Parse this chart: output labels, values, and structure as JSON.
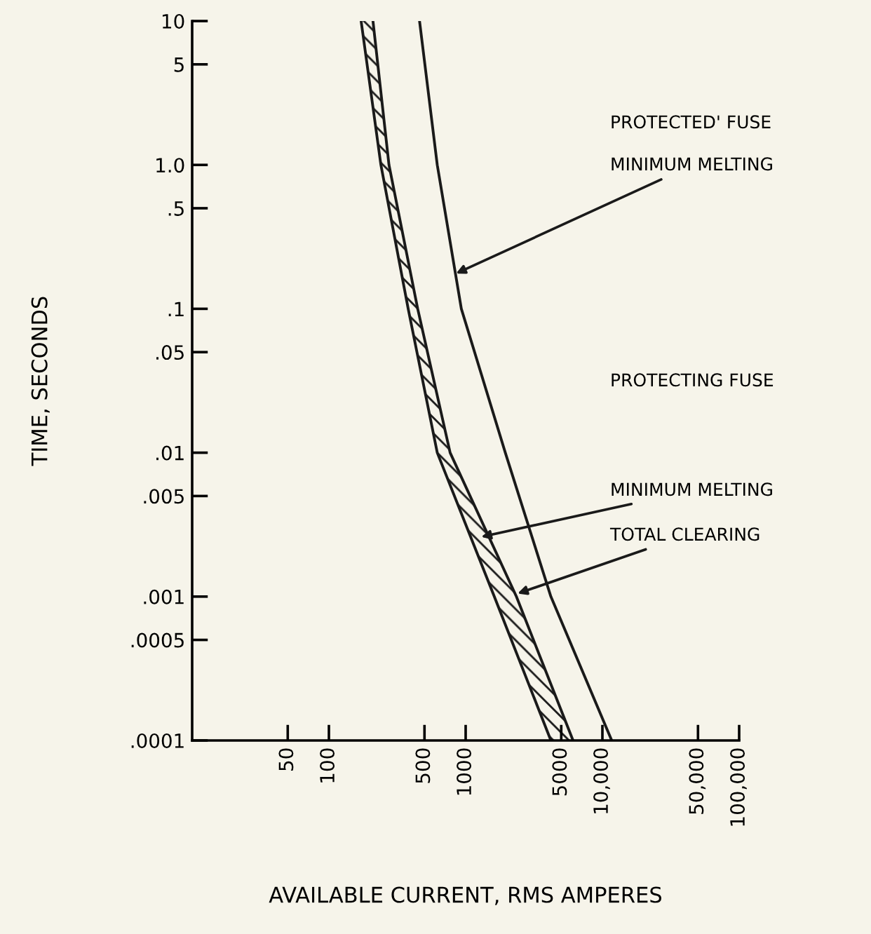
{
  "chart_data": {
    "type": "line",
    "xlabel": "AVAILABLE CURRENT, RMS AMPERES",
    "ylabel": "TIME, SECONDS",
    "log": "xy",
    "grid": false,
    "legend": false,
    "marker": "none",
    "line_style": "solid",
    "xlim": [
      10,
      100000
    ],
    "ylim": [
      0.0001,
      10
    ],
    "xticks": [
      50,
      100,
      500,
      1000,
      5000,
      {
        "value": 10000,
        "label": "10,000"
      },
      {
        "value": 50000,
        "label": "50,000"
      },
      {
        "value": 100000,
        "label": "100,000"
      }
    ],
    "yticks": [
      10,
      5,
      {
        "value": 1,
        "label": "1.0"
      },
      {
        "value": 0.5,
        "label": ".5"
      },
      {
        "value": 0.1,
        "label": ".1"
      },
      {
        "value": 0.05,
        "label": ".05"
      },
      {
        "value": 0.01,
        "label": ".01"
      },
      {
        "value": 0.005,
        "label": ".005"
      },
      {
        "value": 0.001,
        "label": ".001"
      },
      {
        "value": 0.0005,
        "label": ".0005"
      },
      {
        "value": 0.0001,
        "label": ".0001"
      }
    ],
    "series": [
      {
        "color": "#1a1a1a",
        "x": [
          172,
          240,
          380,
          620,
          1620,
          4200
        ],
        "values": [
          10,
          1,
          0.1,
          0.01,
          0.001,
          0.0001
        ]
      },
      {
        "color": "#1a1a1a",
        "x": [
          210,
          275,
          446,
          770,
          2350,
          6100
        ],
        "values": [
          10,
          1,
          0.1,
          0.01,
          0.001,
          0.0001
        ]
      },
      {
        "color": "#1a1a1a",
        "x": [
          460,
          620,
          930,
          1950,
          4200,
          11700
        ],
        "values": [
          10,
          1,
          0.1,
          0.01,
          0.001,
          0.0001
        ]
      }
    ],
    "annotations": [
      "PROTECTED' FUSE",
      {
        "text": "MINIMUM MELTING",
        "x": 850,
        "y": 0.176
      },
      "PROTECTING FUSE",
      {
        "text": "MINIMUM MELTING",
        "x": 1300,
        "y": 0.0026
      },
      {
        "text": "TOTAL CLEARING",
        "x": 2400,
        "y": 0.00105
      }
    ]
  }
}
